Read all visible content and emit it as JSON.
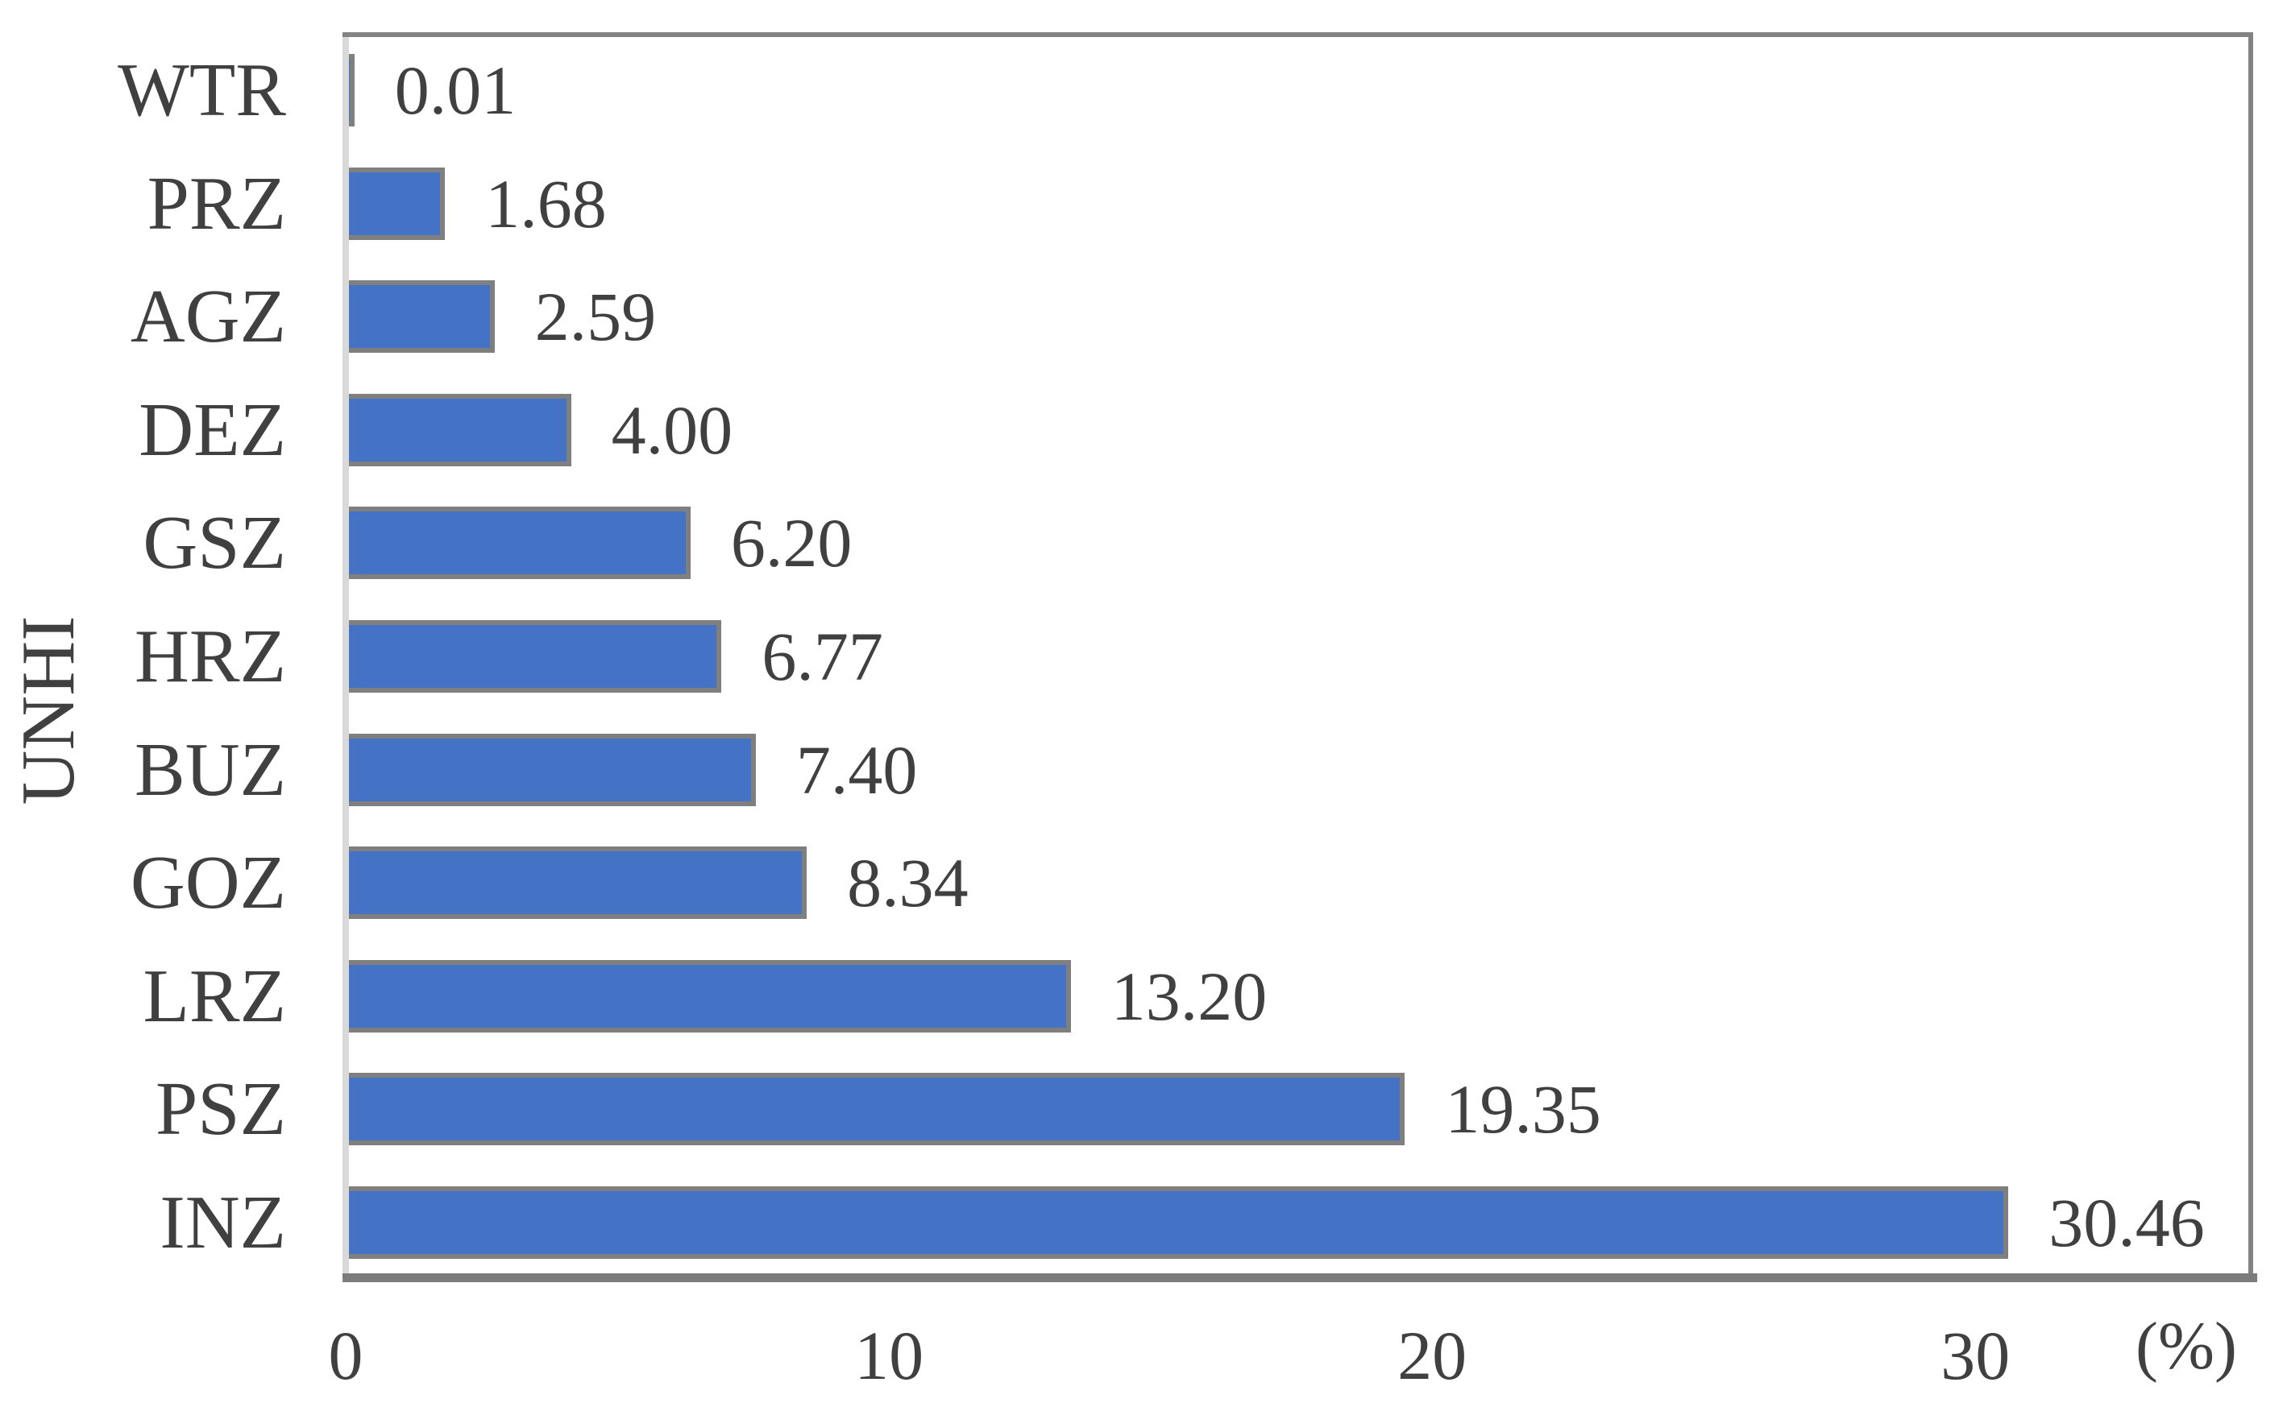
{
  "chart_data": {
    "type": "bar",
    "orientation": "horizontal",
    "title": "",
    "ylabel": "UNHI",
    "xlabel": "",
    "x_axis_unit": "(%)",
    "categories": [
      "WTR",
      "PRZ",
      "AGZ",
      "DEZ",
      "GSZ",
      "HRZ",
      "BUZ",
      "GOZ",
      "LRZ",
      "PSZ",
      "INZ"
    ],
    "values": [
      0.01,
      1.68,
      2.59,
      4.0,
      6.2,
      6.77,
      7.4,
      8.34,
      13.2,
      19.35,
      30.46
    ],
    "value_labels": [
      "0.01",
      "1.68",
      "2.59",
      "4.00",
      "6.20",
      "6.77",
      "7.40",
      "8.34",
      "13.20",
      "19.35",
      "30.46"
    ],
    "x_ticks": [
      {
        "value": 0,
        "label": "0"
      },
      {
        "value": 10,
        "label": "10"
      },
      {
        "value": 20,
        "label": "20"
      },
      {
        "value": 30,
        "label": "30"
      }
    ],
    "xlim": [
      0,
      35.1
    ],
    "grid": false,
    "legend": false,
    "colors": {
      "bar_fill": "#4472C4",
      "bar_border": "#7F7F7F",
      "y_axis_line": "#D9D9D9",
      "plot_frame": "#838383",
      "x_axis_line": "#7C7C7C",
      "text": "#404040",
      "background": "#FFFFFF"
    }
  }
}
